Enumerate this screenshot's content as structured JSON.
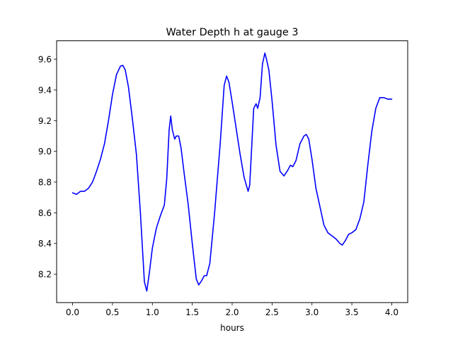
{
  "chart_data": {
    "type": "line",
    "title": "Water Depth h at gauge 3",
    "xlabel": "hours",
    "ylabel": "",
    "xlim": [
      -0.2,
      4.2
    ],
    "ylim": [
      8.015,
      9.72
    ],
    "x_ticks": [
      0.0,
      0.5,
      1.0,
      1.5,
      2.0,
      2.5,
      3.0,
      3.5,
      4.0
    ],
    "x_tick_labels": [
      "0.0",
      "0.5",
      "1.0",
      "1.5",
      "2.0",
      "2.5",
      "3.0",
      "3.5",
      "4.0"
    ],
    "y_ticks": [
      8.2,
      8.4,
      8.6,
      8.8,
      9.0,
      9.2,
      9.4,
      9.6
    ],
    "y_tick_labels": [
      "8.2",
      "8.4",
      "8.6",
      "8.8",
      "9.0",
      "9.2",
      "9.4",
      "9.6"
    ],
    "grid": false,
    "series": [
      {
        "color": "#0000ff",
        "x": [
          0.0,
          0.05,
          0.1,
          0.15,
          0.2,
          0.25,
          0.3,
          0.35,
          0.4,
          0.45,
          0.5,
          0.55,
          0.6,
          0.63,
          0.66,
          0.7,
          0.75,
          0.8,
          0.85,
          0.9,
          0.93,
          0.96,
          1.0,
          1.05,
          1.1,
          1.15,
          1.18,
          1.21,
          1.23,
          1.25,
          1.28,
          1.3,
          1.33,
          1.36,
          1.4,
          1.45,
          1.5,
          1.55,
          1.58,
          1.62,
          1.65,
          1.68,
          1.72,
          1.78,
          1.85,
          1.9,
          1.93,
          1.96,
          2.0,
          2.05,
          2.1,
          2.15,
          2.2,
          2.22,
          2.25,
          2.27,
          2.3,
          2.32,
          2.35,
          2.38,
          2.41,
          2.43,
          2.46,
          2.5,
          2.55,
          2.6,
          2.65,
          2.7,
          2.73,
          2.76,
          2.8,
          2.85,
          2.9,
          2.93,
          2.96,
          3.0,
          3.05,
          3.1,
          3.15,
          3.2,
          3.25,
          3.3,
          3.35,
          3.38,
          3.42,
          3.46,
          3.5,
          3.55,
          3.6,
          3.65,
          3.7,
          3.75,
          3.8,
          3.85,
          3.9,
          3.95,
          4.0
        ],
        "values": [
          8.73,
          8.72,
          8.74,
          8.74,
          8.76,
          8.8,
          8.87,
          8.95,
          9.05,
          9.2,
          9.37,
          9.5,
          9.555,
          9.56,
          9.53,
          9.42,
          9.21,
          8.98,
          8.6,
          8.15,
          8.09,
          8.2,
          8.37,
          8.5,
          8.58,
          8.65,
          8.82,
          9.14,
          9.23,
          9.14,
          9.08,
          9.1,
          9.1,
          9.02,
          8.85,
          8.65,
          8.4,
          8.17,
          8.13,
          8.16,
          8.19,
          8.19,
          8.27,
          8.6,
          9.05,
          9.43,
          9.49,
          9.45,
          9.32,
          9.15,
          8.98,
          8.83,
          8.74,
          8.78,
          9.08,
          9.28,
          9.31,
          9.28,
          9.35,
          9.57,
          9.64,
          9.6,
          9.53,
          9.33,
          9.04,
          8.87,
          8.84,
          8.88,
          8.91,
          8.9,
          8.94,
          9.05,
          9.1,
          9.11,
          9.08,
          8.95,
          8.76,
          8.64,
          8.52,
          8.47,
          8.45,
          8.43,
          8.4,
          8.39,
          8.42,
          8.46,
          8.47,
          8.49,
          8.56,
          8.67,
          8.91,
          9.13,
          9.28,
          9.35,
          9.35,
          9.34,
          9.34
        ]
      }
    ]
  }
}
